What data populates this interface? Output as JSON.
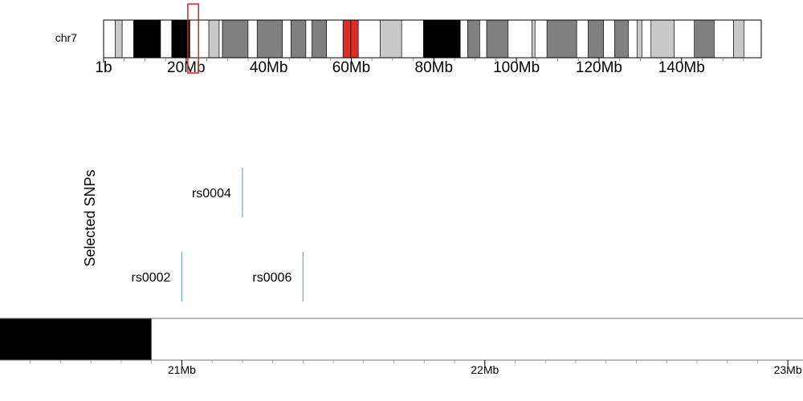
{
  "chromosome": {
    "name": "chr7",
    "length_mb": 159.3,
    "bands": [
      {
        "start": 0.0,
        "end": 2.8,
        "stain": "gneg"
      },
      {
        "start": 2.8,
        "end": 4.5,
        "stain": "gpos25"
      },
      {
        "start": 4.5,
        "end": 7.3,
        "stain": "gneg"
      },
      {
        "start": 7.3,
        "end": 13.8,
        "stain": "gpos100"
      },
      {
        "start": 13.8,
        "end": 16.5,
        "stain": "gneg"
      },
      {
        "start": 16.5,
        "end": 20.9,
        "stain": "gpos100"
      },
      {
        "start": 20.9,
        "end": 25.5,
        "stain": "gneg"
      },
      {
        "start": 25.5,
        "end": 28.0,
        "stain": "gpos25"
      },
      {
        "start": 28.0,
        "end": 28.8,
        "stain": "gneg"
      },
      {
        "start": 28.8,
        "end": 35.0,
        "stain": "gpos75"
      },
      {
        "start": 35.0,
        "end": 37.2,
        "stain": "gneg"
      },
      {
        "start": 37.2,
        "end": 43.3,
        "stain": "gpos75"
      },
      {
        "start": 43.3,
        "end": 45.4,
        "stain": "gneg"
      },
      {
        "start": 45.4,
        "end": 49.0,
        "stain": "gpos75"
      },
      {
        "start": 49.0,
        "end": 50.5,
        "stain": "gneg"
      },
      {
        "start": 50.5,
        "end": 54.0,
        "stain": "gpos75"
      },
      {
        "start": 54.0,
        "end": 58.0,
        "stain": "gneg"
      },
      {
        "start": 58.0,
        "end": 59.9,
        "stain": "acen"
      },
      {
        "start": 59.9,
        "end": 61.7,
        "stain": "acen"
      },
      {
        "start": 61.7,
        "end": 67.0,
        "stain": "gneg"
      },
      {
        "start": 67.0,
        "end": 72.2,
        "stain": "gpos25"
      },
      {
        "start": 72.2,
        "end": 77.5,
        "stain": "gneg"
      },
      {
        "start": 77.5,
        "end": 86.4,
        "stain": "gpos100"
      },
      {
        "start": 86.4,
        "end": 88.2,
        "stain": "gneg"
      },
      {
        "start": 88.2,
        "end": 91.1,
        "stain": "gpos75"
      },
      {
        "start": 91.1,
        "end": 92.8,
        "stain": "gneg"
      },
      {
        "start": 92.8,
        "end": 98.0,
        "stain": "gpos75"
      },
      {
        "start": 98.0,
        "end": 103.8,
        "stain": "gneg"
      },
      {
        "start": 103.8,
        "end": 104.5,
        "stain": "gpos25"
      },
      {
        "start": 104.5,
        "end": 107.4,
        "stain": "gneg"
      },
      {
        "start": 107.4,
        "end": 114.6,
        "stain": "gpos75"
      },
      {
        "start": 114.6,
        "end": 117.4,
        "stain": "gneg"
      },
      {
        "start": 117.4,
        "end": 121.1,
        "stain": "gpos75"
      },
      {
        "start": 121.1,
        "end": 123.8,
        "stain": "gneg"
      },
      {
        "start": 123.8,
        "end": 127.1,
        "stain": "gpos75"
      },
      {
        "start": 127.1,
        "end": 129.2,
        "stain": "gneg"
      },
      {
        "start": 129.2,
        "end": 130.4,
        "stain": "gpos25"
      },
      {
        "start": 130.4,
        "end": 132.6,
        "stain": "gneg"
      },
      {
        "start": 132.6,
        "end": 138.2,
        "stain": "gpos25"
      },
      {
        "start": 138.2,
        "end": 143.1,
        "stain": "gneg"
      },
      {
        "start": 143.1,
        "end": 147.9,
        "stain": "gpos75"
      },
      {
        "start": 147.9,
        "end": 152.6,
        "stain": "gneg"
      },
      {
        "start": 152.6,
        "end": 155.1,
        "stain": "gpos25"
      },
      {
        "start": 155.1,
        "end": 159.3,
        "stain": "gneg"
      }
    ],
    "stain_colors": {
      "gneg": "#ffffff",
      "gpos25": "#c8c8c8",
      "gpos50": "#a0a0a0",
      "gpos75": "#808080",
      "gpos100": "#000000",
      "acen": "#d92f27"
    },
    "ticks": [
      {
        "pos": 0,
        "label": "1b"
      },
      {
        "pos": 20,
        "label": "20Mb"
      },
      {
        "pos": 40,
        "label": "40Mb"
      },
      {
        "pos": 60,
        "label": "60Mb"
      },
      {
        "pos": 80,
        "label": "80Mb"
      },
      {
        "pos": 100,
        "label": "100Mb"
      },
      {
        "pos": 120,
        "label": "120Mb"
      },
      {
        "pos": 140,
        "label": "140Mb"
      }
    ],
    "highlight": {
      "start": 20.4,
      "end": 23.0,
      "color": "#e02020"
    }
  },
  "region": {
    "start_mb": 20.4,
    "end_mb": 23.05,
    "ticks": [
      {
        "pos": 21,
        "label": "21Mb"
      },
      {
        "pos": 22,
        "label": "22Mb"
      },
      {
        "pos": 23,
        "label": "23Mb"
      }
    ],
    "minor_ticks": [
      20.5,
      20.6,
      20.7,
      20.8,
      20.9,
      21.1,
      21.2,
      21.3,
      21.4,
      21.5,
      21.6,
      21.7,
      21.8,
      21.9,
      22.1,
      22.2,
      22.3,
      22.4,
      22.5,
      22.6,
      22.7,
      22.8,
      22.9
    ],
    "band_track": [
      {
        "start": 20.4,
        "end": 20.9,
        "stain": "gpos100"
      },
      {
        "start": 20.9,
        "end": 23.05,
        "stain": "gneg"
      }
    ]
  },
  "snp_track": {
    "title": "Selected SNPs",
    "line_color": "#7aa6c8",
    "snps": [
      {
        "id": "rs0004",
        "pos": 21.2,
        "row": 0
      },
      {
        "id": "rs0002",
        "pos": 21.0,
        "row": 1
      },
      {
        "id": "rs0006",
        "pos": 21.4,
        "row": 1
      }
    ]
  }
}
